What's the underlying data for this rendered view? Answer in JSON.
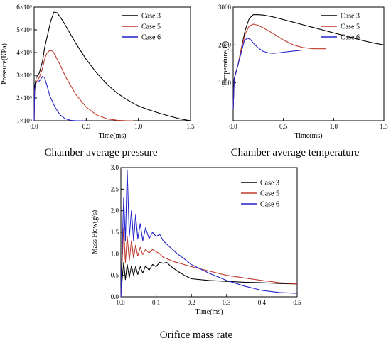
{
  "chart_data": [
    {
      "type": "line",
      "caption": "Chamber average pressure",
      "xlabel": "Time(ms)",
      "ylabel": "Pressure(KPa)",
      "xlim": [
        0,
        1.5
      ],
      "ylim": [
        100000,
        600000
      ],
      "xticks": [
        0,
        0.5,
        1,
        1.5
      ],
      "xtick_labels": [
        "0.0",
        "0.5",
        "1.0",
        "1.5"
      ],
      "yticks": [
        100000,
        200000,
        300000,
        400000,
        500000,
        600000
      ],
      "ytick_labels": [
        "1×10⁵",
        "2×10⁵",
        "3×10⁵",
        "4×10⁵",
        "5×10⁵",
        "6×10⁵"
      ],
      "grid": false,
      "legend_position": "top-right",
      "series": [
        {
          "name": "Case 3",
          "color": "#000000",
          "x": [
            0,
            0.005,
            0.02,
            0.05,
            0.08,
            0.1,
            0.13,
            0.16,
            0.19,
            0.22,
            0.26,
            0.3,
            0.35,
            0.4,
            0.5,
            0.6,
            0.7,
            0.8,
            0.9,
            1.0,
            1.1,
            1.2,
            1.3,
            1.4,
            1.5
          ],
          "y": [
            100000,
            250000,
            290000,
            310000,
            360000,
            420000,
            480000,
            540000,
            578000,
            575000,
            550000,
            520000,
            480000,
            440000,
            370000,
            310000,
            260000,
            220000,
            190000,
            165000,
            148000,
            133000,
            120000,
            108000,
            100000
          ]
        },
        {
          "name": "Case 5",
          "color": "#c0392b",
          "x": [
            0,
            0.005,
            0.02,
            0.05,
            0.08,
            0.1,
            0.12,
            0.15,
            0.18,
            0.2,
            0.25,
            0.3,
            0.4,
            0.5,
            0.6,
            0.7,
            0.8,
            0.9,
            0.95
          ],
          "y": [
            100000,
            230000,
            270000,
            290000,
            330000,
            370000,
            395000,
            410000,
            405000,
            390000,
            345000,
            295000,
            215000,
            160000,
            125000,
            108000,
            102000,
            100000,
            100000
          ]
        },
        {
          "name": "Case 6",
          "color": "#2222cc",
          "x": [
            0,
            0.005,
            0.02,
            0.04,
            0.06,
            0.08,
            0.1,
            0.12,
            0.15,
            0.2,
            0.25,
            0.3,
            0.35,
            0.4,
            0.5
          ],
          "y": [
            100000,
            240000,
            270000,
            270000,
            280000,
            295000,
            290000,
            260000,
            210000,
            160000,
            125000,
            108000,
            102000,
            100000,
            100000
          ]
        }
      ]
    },
    {
      "type": "line",
      "caption": "Chamber average temperature",
      "xlabel": "Time(ms)",
      "ylabel": "Temperature(K)",
      "xlim": [
        0,
        1.5
      ],
      "ylim": [
        0,
        3000
      ],
      "xticks": [
        0,
        0.5,
        1,
        1.5
      ],
      "xtick_labels": [
        "0.0",
        "0.5",
        "1.0",
        "1.5"
      ],
      "yticks": [
        1000,
        2000,
        3000
      ],
      "ytick_labels": [
        "1000",
        "2000",
        "3000"
      ],
      "grid": false,
      "legend_position": "top-right",
      "series": [
        {
          "name": "Case 3",
          "color": "#000000",
          "x": [
            0,
            0.01,
            0.03,
            0.05,
            0.08,
            0.12,
            0.16,
            0.2,
            0.25,
            0.3,
            0.4,
            0.5,
            0.6,
            0.7,
            0.8,
            0.9,
            1.0,
            1.1,
            1.2,
            1.3,
            1.4,
            1.5
          ],
          "y": [
            300,
            1100,
            1300,
            1500,
            1900,
            2400,
            2700,
            2800,
            2800,
            2790,
            2740,
            2670,
            2600,
            2530,
            2460,
            2390,
            2320,
            2250,
            2180,
            2110,
            2050,
            2000
          ]
        },
        {
          "name": "Case 5",
          "color": "#c0392b",
          "x": [
            0,
            0.01,
            0.03,
            0.05,
            0.08,
            0.12,
            0.16,
            0.2,
            0.25,
            0.3,
            0.4,
            0.5,
            0.6,
            0.7,
            0.8,
            0.92
          ],
          "y": [
            300,
            1100,
            1300,
            1500,
            1900,
            2300,
            2500,
            2550,
            2520,
            2450,
            2300,
            2130,
            2000,
            1930,
            1900,
            1900
          ]
        },
        {
          "name": "Case 6",
          "color": "#2222cc",
          "x": [
            0,
            0.01,
            0.03,
            0.05,
            0.08,
            0.11,
            0.14,
            0.17,
            0.2,
            0.25,
            0.3,
            0.35,
            0.4,
            0.45,
            0.5,
            0.6,
            0.68
          ],
          "y": [
            300,
            1100,
            1300,
            1500,
            1800,
            2100,
            2180,
            2150,
            2050,
            1920,
            1830,
            1790,
            1780,
            1790,
            1810,
            1840,
            1860
          ]
        }
      ]
    },
    {
      "type": "line",
      "caption": "Orifice mass rate",
      "xlabel": "Time(ms)",
      "ylabel": "Mass Flow(g/s)",
      "xlim": [
        0,
        0.5
      ],
      "ylim": [
        0,
        3
      ],
      "xticks": [
        0,
        0.1,
        0.2,
        0.3,
        0.4,
        0.5
      ],
      "xtick_labels": [
        "0.0",
        "0.1",
        "0.2",
        "0.3",
        "0.4",
        "0.5"
      ],
      "yticks": [
        0,
        0.5,
        1,
        1.5,
        2,
        2.5,
        3
      ],
      "ytick_labels": [
        "0.0",
        "0.5",
        "1.0",
        "1.5",
        "2.0",
        "2.5",
        "3.0"
      ],
      "grid": false,
      "legend_position": "top-right",
      "series": [
        {
          "name": "Case 3",
          "color": "#000000",
          "x": [
            0,
            0.004,
            0.008,
            0.013,
            0.018,
            0.024,
            0.03,
            0.036,
            0.042,
            0.048,
            0.055,
            0.062,
            0.07,
            0.08,
            0.09,
            0.1,
            0.11,
            0.12,
            0.13,
            0.14,
            0.16,
            0.18,
            0.2,
            0.25,
            0.3,
            0.35,
            0.4,
            0.45,
            0.5
          ],
          "y": [
            0,
            0.45,
            0.8,
            0.4,
            0.75,
            0.45,
            0.72,
            0.5,
            0.7,
            0.52,
            0.7,
            0.55,
            0.72,
            0.62,
            0.75,
            0.7,
            0.8,
            0.78,
            0.8,
            0.72,
            0.6,
            0.5,
            0.42,
            0.38,
            0.36,
            0.34,
            0.33,
            0.31,
            0.3
          ]
        },
        {
          "name": "Case 5",
          "color": "#c0392b",
          "x": [
            0,
            0.004,
            0.008,
            0.013,
            0.018,
            0.024,
            0.03,
            0.036,
            0.042,
            0.048,
            0.055,
            0.062,
            0.07,
            0.08,
            0.09,
            0.1,
            0.11,
            0.12,
            0.15,
            0.2,
            0.25,
            0.3,
            0.35,
            0.4,
            0.45,
            0.5
          ],
          "y": [
            0,
            0.9,
            1.6,
            0.8,
            1.4,
            0.85,
            1.3,
            0.9,
            1.2,
            0.95,
            1.15,
            0.98,
            1.1,
            1.02,
            1.1,
            1.05,
            1.0,
            0.92,
            0.82,
            0.7,
            0.6,
            0.5,
            0.44,
            0.38,
            0.33,
            0.3
          ]
        },
        {
          "name": "Case 6",
          "color": "#2222cc",
          "x": [
            0,
            0.004,
            0.008,
            0.013,
            0.018,
            0.024,
            0.03,
            0.036,
            0.042,
            0.048,
            0.055,
            0.062,
            0.07,
            0.08,
            0.09,
            0.1,
            0.11,
            0.12,
            0.14,
            0.16,
            0.18,
            0.2,
            0.25,
            0.3,
            0.35,
            0.4,
            0.45,
            0.5
          ],
          "y": [
            0,
            1.2,
            2.3,
            1.3,
            2.95,
            1.4,
            2.0,
            1.3,
            1.9,
            1.35,
            1.7,
            1.3,
            1.6,
            1.35,
            1.5,
            1.4,
            1.45,
            1.3,
            1.15,
            1.0,
            0.88,
            0.75,
            0.55,
            0.38,
            0.25,
            0.15,
            0.1,
            0.08
          ]
        }
      ]
    }
  ]
}
